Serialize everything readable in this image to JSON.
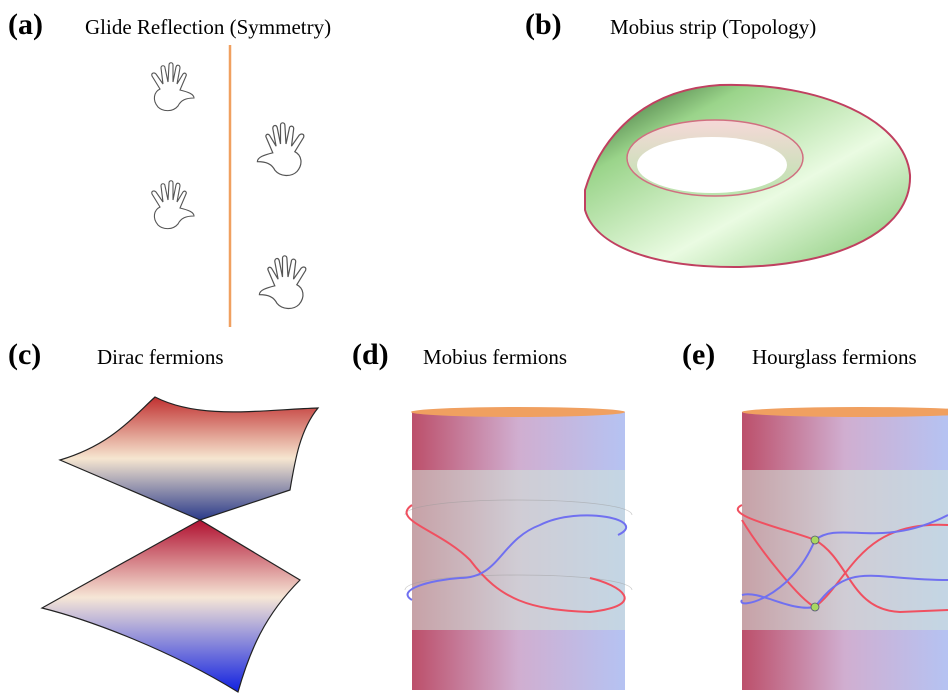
{
  "panels": [
    {
      "label": "(a)",
      "title": "Glide Reflection (Symmetry)"
    },
    {
      "label": "(b)",
      "title": "Mobius strip (Topology)"
    },
    {
      "label": "(c)",
      "title": "Dirac fermions"
    },
    {
      "label": "(d)",
      "title": "Mobius fermions"
    },
    {
      "label": "(e)",
      "title": "Hourglass fermions"
    }
  ]
}
